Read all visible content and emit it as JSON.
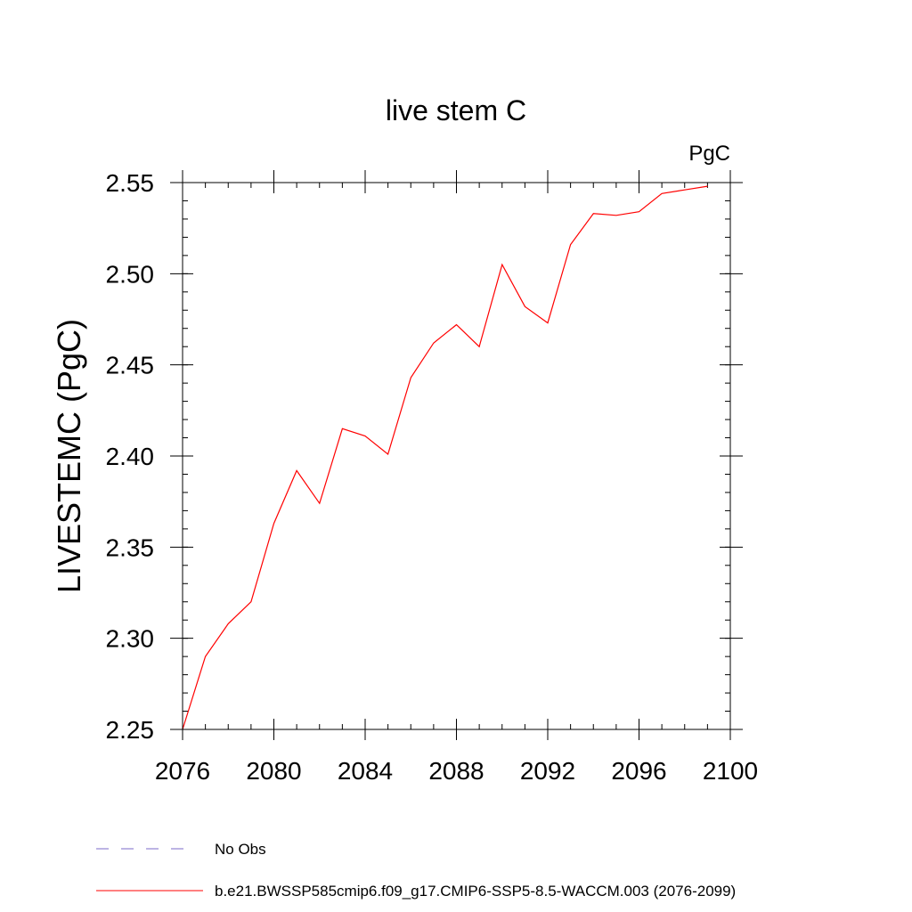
{
  "chart_data": {
    "type": "line",
    "title": "live stem C",
    "units_label": "PgC",
    "ylabel": "LIVESTEMC  (PgC)",
    "xlabel": "",
    "xlim": [
      2076,
      2100
    ],
    "ylim": [
      2.25,
      2.55
    ],
    "x_ticks": [
      2076,
      2080,
      2084,
      2088,
      2092,
      2096,
      2100
    ],
    "y_ticks": [
      "2.25",
      "2.30",
      "2.35",
      "2.40",
      "2.45",
      "2.50",
      "2.55"
    ],
    "x_minor_step": 1,
    "y_minor_step": 0.01,
    "grid": false,
    "series": [
      {
        "name": "b.e21.BWSSP585cmip6.f09_g17.CMIP6-SSP5-8.5-WACCM.003 (2076-2099)",
        "color": "#ff0000",
        "style": "solid",
        "x": [
          2076,
          2077,
          2078,
          2079,
          2080,
          2081,
          2082,
          2083,
          2084,
          2085,
          2086,
          2087,
          2088,
          2089,
          2090,
          2091,
          2092,
          2093,
          2094,
          2095,
          2096,
          2097,
          2098,
          2099
        ],
        "values": [
          2.25,
          2.29,
          2.308,
          2.32,
          2.363,
          2.392,
          2.374,
          2.415,
          2.411,
          2.401,
          2.443,
          2.462,
          2.472,
          2.46,
          2.505,
          2.482,
          2.473,
          2.516,
          2.533,
          2.532,
          2.534,
          2.544,
          2.546,
          2.548
        ]
      }
    ],
    "legend": {
      "placement": "bottom-left",
      "entries": [
        {
          "label": "No Obs",
          "color": "#7b68c8",
          "style": "dashed"
        },
        {
          "label": "b.e21.BWSSP585cmip6.f09_g17.CMIP6-SSP5-8.5-WACCM.003 (2076-2099)",
          "color": "#ff0000",
          "style": "solid"
        }
      ]
    }
  }
}
